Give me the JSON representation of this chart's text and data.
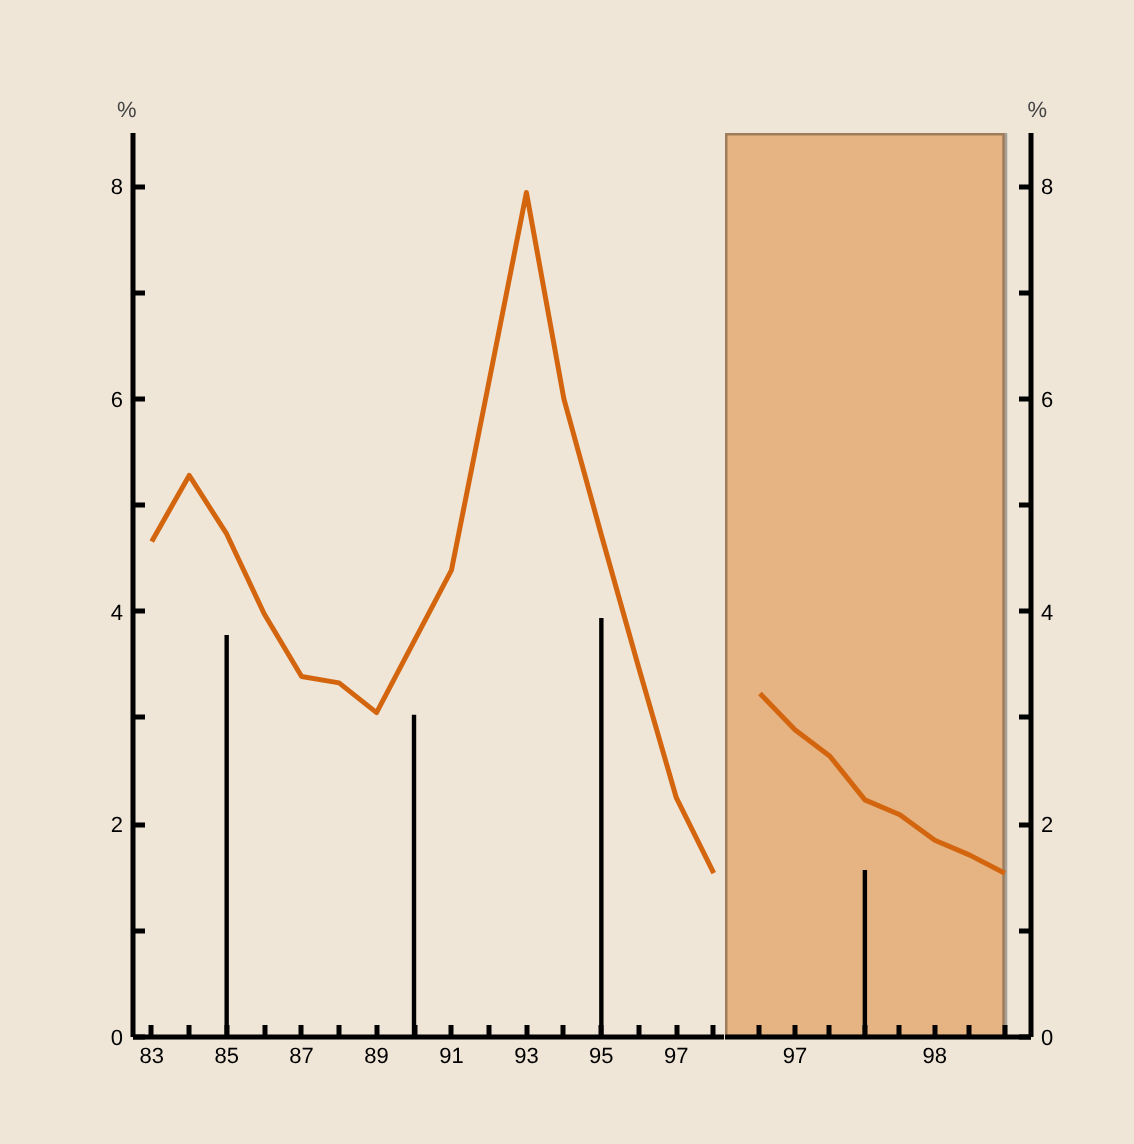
{
  "chart_data": [
    {
      "type": "line",
      "ylabel": "%",
      "x": [
        83,
        84,
        85,
        86,
        87,
        88,
        89,
        90,
        91,
        92,
        93,
        94,
        95,
        96,
        97,
        98
      ],
      "xlim": [
        82.5,
        98.3
      ],
      "ylim": [
        0,
        8.5
      ],
      "xticks": [
        83,
        {
          "value": 84,
          "label": null
        },
        85,
        {
          "value": 86,
          "label": null
        },
        87,
        {
          "value": 88,
          "label": null
        },
        89,
        {
          "value": 90,
          "label": null
        },
        91,
        {
          "value": 92,
          "label": null
        },
        93,
        {
          "value": 94,
          "label": null
        },
        95,
        {
          "value": 96,
          "label": null
        },
        97,
        {
          "value": 98,
          "label": null
        }
      ],
      "yticks": [
        0,
        {
          "value": 1,
          "label": null
        },
        2,
        {
          "value": 3,
          "label": null
        },
        4,
        {
          "value": 5,
          "label": null
        },
        6,
        {
          "value": 7,
          "label": null
        },
        8
      ],
      "grid": false,
      "series": [
        {
          "color": "#d4650f",
          "values": [
            4.66,
            5.28,
            4.73,
            3.98,
            3.39,
            3.33,
            3.05,
            3.72,
            4.39,
            6.16,
            7.94,
            6.0,
            4.72,
            3.47,
            2.25,
            1.54
          ]
        },
        {
          "type": "bar",
          "color": "#000000",
          "values": [
            null,
            null,
            3.78,
            null,
            null,
            null,
            null,
            3.03,
            null,
            null,
            null,
            null,
            3.94,
            null,
            null,
            null
          ]
        }
      ]
    },
    {
      "type": "line",
      "y2label": "%",
      "x": [
        96.75,
        97,
        97.25,
        97.5,
        97.75,
        98,
        98.25,
        98.5
      ],
      "xlim": [
        96.5,
        98.6875
      ],
      "y2lim": [
        0,
        8.5
      ],
      "xticks": [
        {
          "value": 96.75,
          "label": null
        },
        97,
        {
          "value": 97.25,
          "label": null
        },
        {
          "value": 97.5,
          "label": null
        },
        {
          "value": 97.75,
          "label": null
        },
        98,
        {
          "value": 98.25,
          "label": null
        },
        {
          "value": 98.5,
          "label": null
        }
      ],
      "y2ticks": [
        0,
        {
          "value": 1,
          "label": null
        },
        2,
        {
          "value": 3,
          "label": null
        },
        4,
        {
          "value": 5,
          "label": null
        },
        6,
        {
          "value": 7,
          "label": null
        },
        8
      ],
      "bands": [
        {
          "axis": "x",
          "from": 96.5,
          "to": 98.5,
          "color": "#e6b482"
        }
      ],
      "grid": false,
      "series": [
        {
          "axis": "y2",
          "color": "#d4650f",
          "values": [
            3.23,
            2.89,
            2.64,
            2.23,
            2.09,
            1.85,
            1.71,
            1.54
          ]
        },
        {
          "type": "bar",
          "axis": "y2",
          "color": "#000000",
          "values": [
            null,
            null,
            null,
            1.57,
            null,
            null,
            null,
            null
          ]
        }
      ]
    }
  ]
}
